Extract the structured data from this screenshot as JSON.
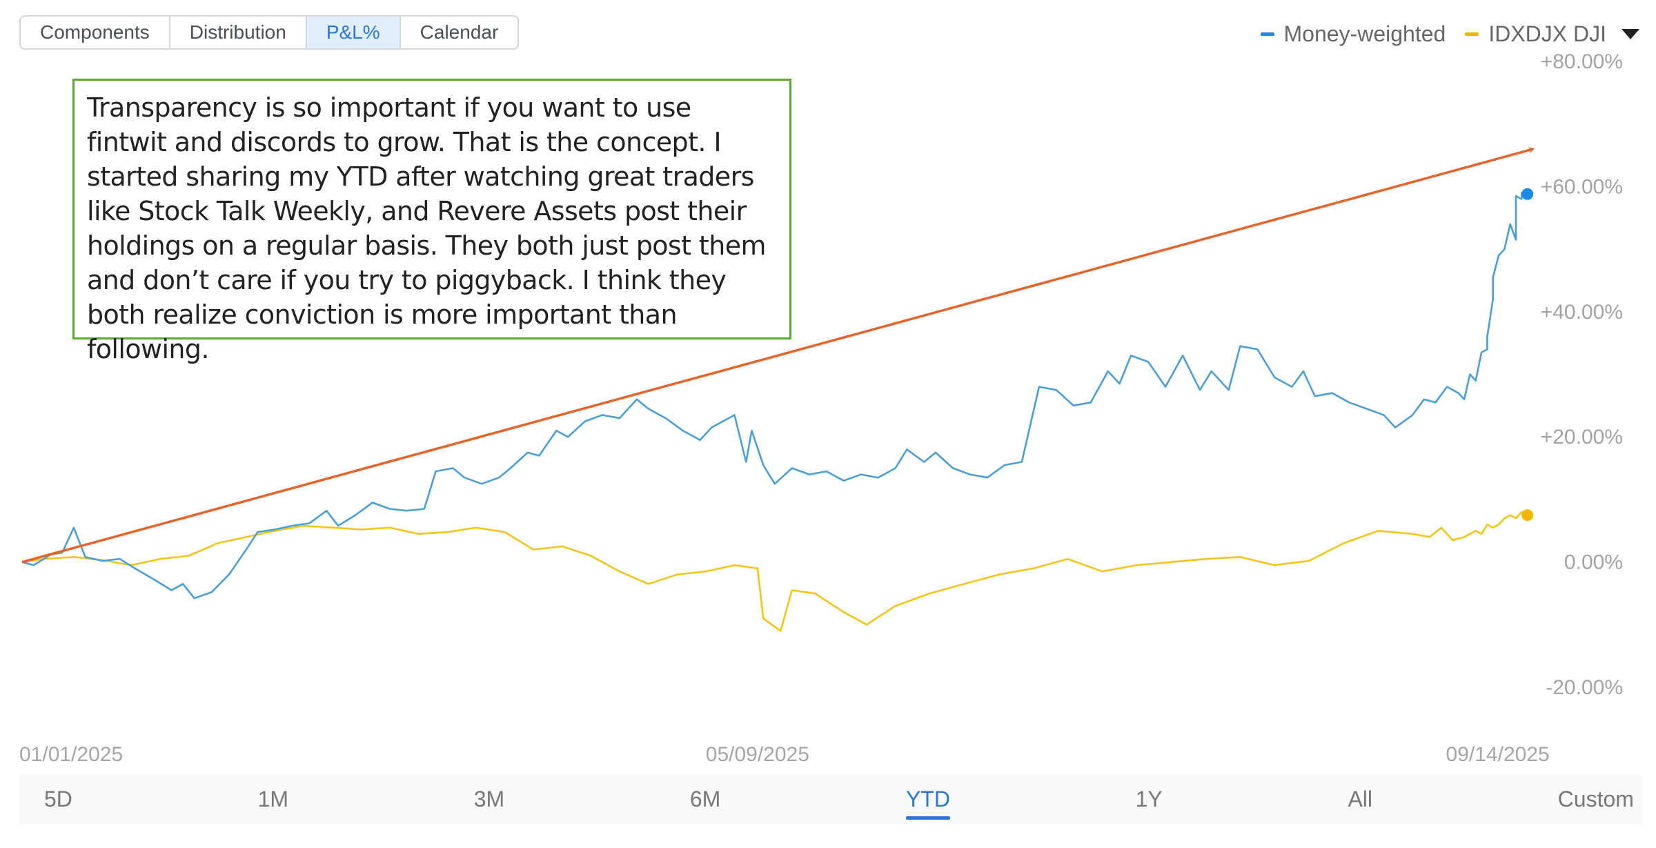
{
  "tabs": [
    {
      "label": "Components",
      "active": false
    },
    {
      "label": "Distribution",
      "active": false
    },
    {
      "label": "P&L%",
      "active": true
    },
    {
      "label": "Calendar",
      "active": false
    }
  ],
  "legend": {
    "money_weighted": "Money-weighted",
    "benchmark": "IDXDJX DJI"
  },
  "annotation": "Transparency is so important if you want to use fintwit and discords to grow. That is the concept. I started sharing my YTD after watching great traders like Stock Talk Weekly, and Revere Assets post their holdings on a regular basis. They both just post them and don’t care if you try to piggyback. I think they both realize conviction is more important than following.",
  "range_buttons": [
    {
      "label": "5D",
      "active": false
    },
    {
      "label": "1M",
      "active": false
    },
    {
      "label": "3M",
      "active": false
    },
    {
      "label": "6M",
      "active": false
    },
    {
      "label": "YTD",
      "active": true
    },
    {
      "label": "1Y",
      "active": false
    },
    {
      "label": "All",
      "active": false
    },
    {
      "label": "Custom",
      "active": false
    }
  ],
  "chart_data": {
    "type": "line",
    "y_unit": "%",
    "ylim": [
      -20,
      80
    ],
    "yticks": [
      {
        "value": 80,
        "label": "+80.00%"
      },
      {
        "value": 60,
        "label": "+60.00%"
      },
      {
        "value": 40,
        "label": "+40.00%"
      },
      {
        "value": 20,
        "label": "+20.00%"
      },
      {
        "value": 0,
        "label": "0.00%"
      },
      {
        "value": -20,
        "label": "-20.00%"
      }
    ],
    "xlim": [
      "2025-01-01",
      "2025-09-21"
    ],
    "xticks": [
      {
        "date": "2025-01-01",
        "label": "01/01/2025"
      },
      {
        "date": "2025-05-09",
        "label": "05/09/2025"
      },
      {
        "date": "2025-09-14",
        "label": "09/14/2025"
      }
    ],
    "grid": false,
    "legend_position": "top-right",
    "series": [
      {
        "name": "Money-weighted",
        "color": "#4a9fd8",
        "end_marker_color": "#1e88e5",
        "points": [
          [
            "2025-01-01",
            0
          ],
          [
            "2025-01-03",
            -0.5
          ],
          [
            "2025-01-06",
            1.2
          ],
          [
            "2025-01-08",
            1.5
          ],
          [
            "2025-01-10",
            5.5
          ],
          [
            "2025-01-12",
            0.8
          ],
          [
            "2025-01-15",
            0.2
          ],
          [
            "2025-01-18",
            0.5
          ],
          [
            "2025-01-21",
            -1.2
          ],
          [
            "2025-01-24",
            -2.8
          ],
          [
            "2025-01-27",
            -4.5
          ],
          [
            "2025-01-29",
            -3.5
          ],
          [
            "2025-01-31",
            -5.8
          ],
          [
            "2025-02-03",
            -4.8
          ],
          [
            "2025-02-06",
            -2.0
          ],
          [
            "2025-02-09",
            2.0
          ],
          [
            "2025-02-11",
            4.8
          ],
          [
            "2025-02-14",
            5.2
          ],
          [
            "2025-02-17",
            5.8
          ],
          [
            "2025-02-20",
            6.2
          ],
          [
            "2025-02-23",
            8.2
          ],
          [
            "2025-02-25",
            5.8
          ],
          [
            "2025-02-28",
            7.5
          ],
          [
            "2025-03-03",
            9.5
          ],
          [
            "2025-03-06",
            8.5
          ],
          [
            "2025-03-09",
            8.2
          ],
          [
            "2025-03-12",
            8.5
          ],
          [
            "2025-03-14",
            14.5
          ],
          [
            "2025-03-17",
            15.0
          ],
          [
            "2025-03-19",
            13.5
          ],
          [
            "2025-03-22",
            12.5
          ],
          [
            "2025-03-25",
            13.5
          ],
          [
            "2025-03-27",
            15.0
          ],
          [
            "2025-03-30",
            17.5
          ],
          [
            "2025-04-01",
            17.0
          ],
          [
            "2025-04-04",
            21.0
          ],
          [
            "2025-04-06",
            20.0
          ],
          [
            "2025-04-09",
            22.5
          ],
          [
            "2025-04-12",
            23.5
          ],
          [
            "2025-04-15",
            23.0
          ],
          [
            "2025-04-18",
            26.0
          ],
          [
            "2025-04-20",
            24.5
          ],
          [
            "2025-04-23",
            23.0
          ],
          [
            "2025-04-26",
            21.0
          ],
          [
            "2025-04-29",
            19.5
          ],
          [
            "2025-05-01",
            21.5
          ],
          [
            "2025-05-03",
            22.5
          ],
          [
            "2025-05-05",
            23.5
          ],
          [
            "2025-05-07",
            16.0
          ],
          [
            "2025-05-08",
            21.0
          ],
          [
            "2025-05-10",
            15.5
          ],
          [
            "2025-05-12",
            12.5
          ],
          [
            "2025-05-15",
            15.0
          ],
          [
            "2025-05-18",
            14.0
          ],
          [
            "2025-05-21",
            14.5
          ],
          [
            "2025-05-24",
            13.0
          ],
          [
            "2025-05-27",
            14.0
          ],
          [
            "2025-05-30",
            13.5
          ],
          [
            "2025-06-02",
            15.0
          ],
          [
            "2025-06-04",
            18.0
          ],
          [
            "2025-06-07",
            16.0
          ],
          [
            "2025-06-09",
            17.5
          ],
          [
            "2025-06-12",
            15.0
          ],
          [
            "2025-06-15",
            14.0
          ],
          [
            "2025-06-18",
            13.5
          ],
          [
            "2025-06-21",
            15.5
          ],
          [
            "2025-06-24",
            16.0
          ],
          [
            "2025-06-27",
            28.0
          ],
          [
            "2025-06-30",
            27.5
          ],
          [
            "2025-07-03",
            25.0
          ],
          [
            "2025-07-06",
            25.5
          ],
          [
            "2025-07-09",
            30.5
          ],
          [
            "2025-07-11",
            28.5
          ],
          [
            "2025-07-13",
            33.0
          ],
          [
            "2025-07-16",
            32.0
          ],
          [
            "2025-07-19",
            28.0
          ],
          [
            "2025-07-22",
            33.0
          ],
          [
            "2025-07-25",
            27.5
          ],
          [
            "2025-07-27",
            30.5
          ],
          [
            "2025-07-30",
            27.5
          ],
          [
            "2025-08-01",
            34.5
          ],
          [
            "2025-08-04",
            34.0
          ],
          [
            "2025-08-07",
            29.5
          ],
          [
            "2025-08-10",
            28.0
          ],
          [
            "2025-08-12",
            30.5
          ],
          [
            "2025-08-14",
            26.5
          ],
          [
            "2025-08-17",
            27.0
          ],
          [
            "2025-08-20",
            25.5
          ],
          [
            "2025-08-23",
            24.5
          ],
          [
            "2025-08-26",
            23.5
          ],
          [
            "2025-08-28",
            21.5
          ],
          [
            "2025-08-31",
            23.5
          ],
          [
            "2025-09-02",
            26.0
          ],
          [
            "2025-09-04",
            25.5
          ],
          [
            "2025-09-06",
            28.0
          ],
          [
            "2025-09-08",
            27.0
          ],
          [
            "2025-09-09",
            26.0
          ],
          [
            "2025-09-10",
            30.0
          ],
          [
            "2025-09-11",
            29.0
          ],
          [
            "2025-09-12",
            33.5
          ],
          [
            "2025-09-13",
            34.0
          ],
          [
            "2025-09-13",
            36.0
          ],
          [
            "2025-09-14",
            42.0
          ],
          [
            "2025-09-14",
            45.5
          ],
          [
            "2025-09-15",
            49.0
          ],
          [
            "2025-09-16",
            50.0
          ],
          [
            "2025-09-17",
            54.0
          ],
          [
            "2025-09-18",
            51.5
          ],
          [
            "2025-09-18",
            58.5
          ],
          [
            "2025-09-19",
            58.0
          ],
          [
            "2025-09-19",
            59.0
          ],
          [
            "2025-09-20",
            58.8
          ]
        ]
      },
      {
        "name": "IDXDJX DJI",
        "color": "#f5c518",
        "end_marker_color": "#f2b705",
        "points": [
          [
            "2025-01-01",
            0
          ],
          [
            "2025-01-05",
            0.5
          ],
          [
            "2025-01-10",
            0.8
          ],
          [
            "2025-01-15",
            0.3
          ],
          [
            "2025-01-20",
            -0.5
          ],
          [
            "2025-01-25",
            0.5
          ],
          [
            "2025-01-30",
            1.0
          ],
          [
            "2025-02-04",
            3.0
          ],
          [
            "2025-02-09",
            4.0
          ],
          [
            "2025-02-14",
            5.0
          ],
          [
            "2025-02-19",
            5.8
          ],
          [
            "2025-02-24",
            5.5
          ],
          [
            "2025-03-01",
            5.2
          ],
          [
            "2025-03-06",
            5.5
          ],
          [
            "2025-03-11",
            4.5
          ],
          [
            "2025-03-16",
            4.8
          ],
          [
            "2025-03-21",
            5.5
          ],
          [
            "2025-03-26",
            4.8
          ],
          [
            "2025-03-31",
            2.0
          ],
          [
            "2025-04-05",
            2.5
          ],
          [
            "2025-04-10",
            1.0
          ],
          [
            "2025-04-15",
            -1.5
          ],
          [
            "2025-04-20",
            -3.5
          ],
          [
            "2025-04-25",
            -2.0
          ],
          [
            "2025-04-30",
            -1.5
          ],
          [
            "2025-05-05",
            -0.5
          ],
          [
            "2025-05-09",
            -1.0
          ],
          [
            "2025-05-10",
            -9.0
          ],
          [
            "2025-05-13",
            -11.0
          ],
          [
            "2025-05-15",
            -4.5
          ],
          [
            "2025-05-19",
            -5.0
          ],
          [
            "2025-05-24",
            -8.0
          ],
          [
            "2025-05-28",
            -10.0
          ],
          [
            "2025-06-02",
            -7.0
          ],
          [
            "2025-06-08",
            -5.0
          ],
          [
            "2025-06-14",
            -3.5
          ],
          [
            "2025-06-20",
            -2.0
          ],
          [
            "2025-06-26",
            -1.0
          ],
          [
            "2025-07-02",
            0.5
          ],
          [
            "2025-07-08",
            -1.5
          ],
          [
            "2025-07-14",
            -0.5
          ],
          [
            "2025-07-20",
            0.0
          ],
          [
            "2025-07-26",
            0.5
          ],
          [
            "2025-08-01",
            0.8
          ],
          [
            "2025-08-07",
            -0.5
          ],
          [
            "2025-08-13",
            0.2
          ],
          [
            "2025-08-19",
            3.0
          ],
          [
            "2025-08-25",
            5.0
          ],
          [
            "2025-08-31",
            4.5
          ],
          [
            "2025-09-03",
            4.0
          ],
          [
            "2025-09-05",
            5.5
          ],
          [
            "2025-09-07",
            3.5
          ],
          [
            "2025-09-09",
            4.0
          ],
          [
            "2025-09-11",
            5.0
          ],
          [
            "2025-09-12",
            4.5
          ],
          [
            "2025-09-13",
            6.0
          ],
          [
            "2025-09-14",
            5.5
          ],
          [
            "2025-09-15",
            6.0
          ],
          [
            "2025-09-16",
            7.0
          ],
          [
            "2025-09-17",
            7.5
          ],
          [
            "2025-09-18",
            7.0
          ],
          [
            "2025-09-19",
            8.0
          ],
          [
            "2025-09-20",
            7.5
          ]
        ]
      }
    ],
    "annotations": [
      {
        "type": "trend-arrow",
        "color": "#e8632a",
        "from": [
          "2025-01-01",
          0
        ],
        "to": [
          "2025-09-21",
          66
        ]
      }
    ]
  }
}
